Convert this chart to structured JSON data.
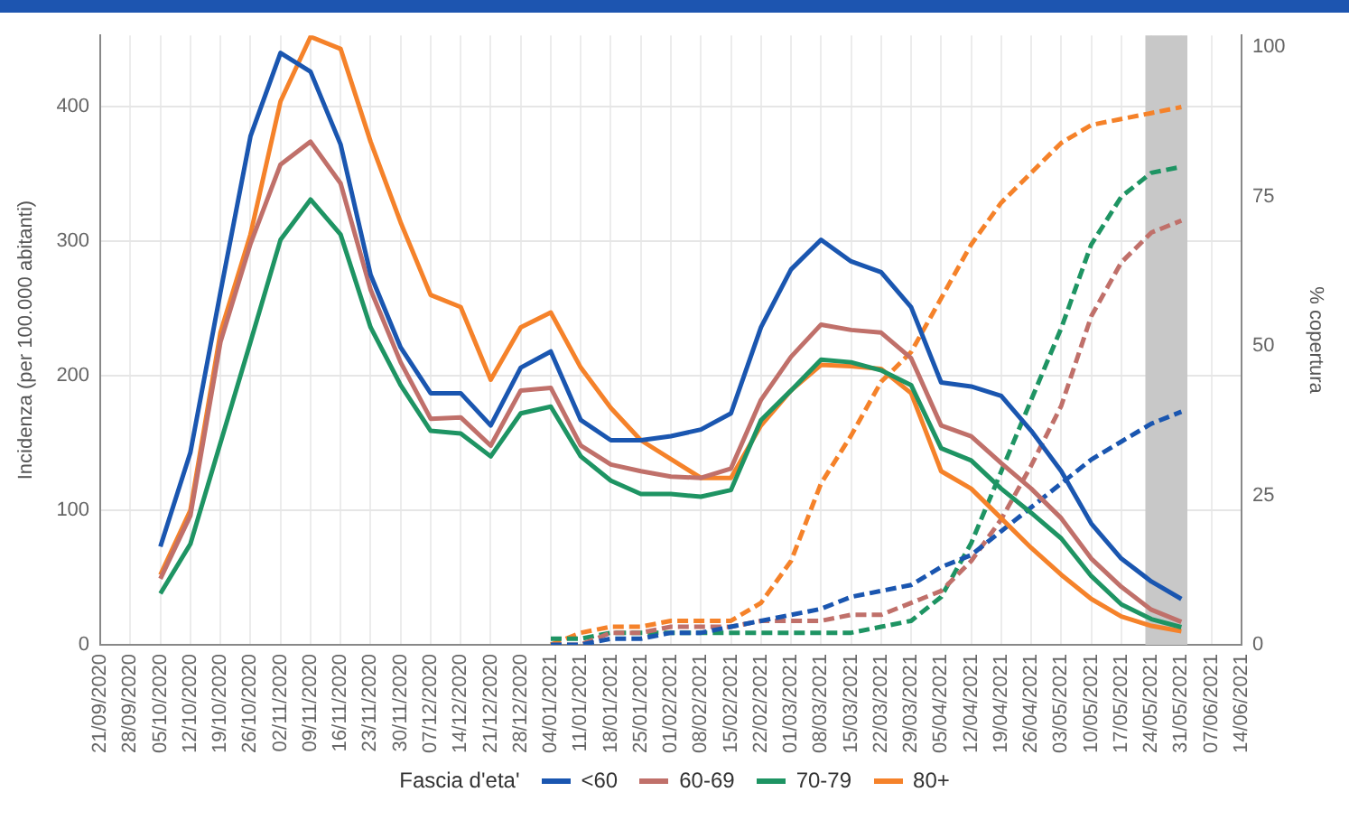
{
  "chart_data": {
    "type": "line",
    "ylabel": "Incidenza (per 100.000 abitanti)",
    "y2label": "% copertura",
    "legend_title": "Fascia d'eta'",
    "legend": "bottom",
    "grid": true,
    "marker": "none",
    "categories": [
      "21/09/2020",
      "28/09/2020",
      "05/10/2020",
      "12/10/2020",
      "19/10/2020",
      "26/10/2020",
      "02/11/2020",
      "09/11/2020",
      "16/11/2020",
      "23/11/2020",
      "30/11/2020",
      "07/12/2020",
      "14/12/2020",
      "21/12/2020",
      "28/12/2020",
      "04/01/2021",
      "11/01/2021",
      "18/01/2021",
      "25/01/2021",
      "01/02/2021",
      "08/02/2021",
      "15/02/2021",
      "22/02/2021",
      "01/03/2021",
      "08/03/2021",
      "15/03/2021",
      "22/03/2021",
      "29/03/2021",
      "05/04/2021",
      "12/04/2021",
      "19/04/2021",
      "26/04/2021",
      "03/05/2021",
      "10/05/2021",
      "17/05/2021",
      "24/05/2021",
      "31/05/2021",
      "07/06/2021",
      "14/06/2021"
    ],
    "ylim": [
      0,
      453
    ],
    "yticks": [
      0,
      100,
      200,
      300,
      400
    ],
    "y2lim": [
      0,
      102
    ],
    "y2ticks": [
      0,
      25,
      50,
      75,
      100
    ],
    "bands": [
      {
        "axis": "x",
        "from": "24/05/2021",
        "to": "31/05/2021",
        "color": "#c8c8c8"
      }
    ],
    "series": [
      {
        "name": "<60",
        "color": "#1a56b0",
        "line_style": "solid",
        "values": [
          null,
          null,
          73,
          143,
          262,
          378,
          440,
          426,
          372,
          275,
          221,
          187,
          187,
          163,
          206,
          218,
          167,
          152,
          152,
          155,
          160,
          172,
          236,
          279,
          301,
          285,
          277,
          251,
          195,
          192,
          185,
          159,
          129,
          90,
          64,
          47,
          34,
          null,
          null
        ]
      },
      {
        "name": "60-69",
        "color": "#c0706a",
        "line_style": "solid",
        "values": [
          null,
          null,
          49,
          96,
          225,
          298,
          357,
          374,
          343,
          264,
          210,
          168,
          169,
          148,
          189,
          191,
          148,
          134,
          129,
          125,
          124,
          131,
          182,
          214,
          238,
          234,
          232,
          213,
          163,
          155,
          135,
          116,
          94,
          64,
          43,
          26,
          17,
          null,
          null
        ]
      },
      {
        "name": "70-79",
        "color": "#1e9463",
        "line_style": "solid",
        "values": [
          null,
          null,
          38,
          75,
          150,
          225,
          301,
          331,
          305,
          236,
          193,
          159,
          157,
          140,
          172,
          177,
          140,
          122,
          112,
          112,
          110,
          115,
          167,
          189,
          212,
          210,
          204,
          193,
          146,
          137,
          116,
          98,
          79,
          51,
          30,
          19,
          13,
          null,
          null
        ]
      },
      {
        "name": "80+",
        "color": "#f5822a",
        "line_style": "solid",
        "values": [
          null,
          null,
          52,
          100,
          232,
          305,
          404,
          452,
          443,
          374,
          314,
          260,
          251,
          197,
          236,
          247,
          206,
          176,
          152,
          138,
          124,
          124,
          163,
          189,
          208,
          207,
          205,
          187,
          129,
          116,
          94,
          72,
          52,
          34,
          21,
          14,
          10,
          null,
          null
        ]
      },
      {
        "color": "#1a56b0",
        "line_style": "dashed",
        "axis": "y2",
        "values": [
          null,
          null,
          null,
          null,
          null,
          null,
          null,
          null,
          null,
          null,
          null,
          null,
          null,
          null,
          null,
          0,
          0,
          1,
          1,
          2,
          2,
          3,
          4,
          5,
          6,
          8,
          9,
          10,
          13,
          15,
          19,
          23,
          27,
          31,
          34,
          37,
          39,
          null,
          null
        ]
      },
      {
        "color": "#c0706a",
        "line_style": "dashed",
        "axis": "y2",
        "values": [
          null,
          null,
          null,
          null,
          null,
          null,
          null,
          null,
          null,
          null,
          null,
          null,
          null,
          null,
          null,
          0,
          0,
          2,
          2,
          3,
          3,
          3,
          4,
          4,
          4,
          5,
          5,
          7,
          9,
          14,
          21,
          30,
          40,
          55,
          64,
          69,
          71,
          null,
          null
        ]
      },
      {
        "color": "#1e9463",
        "line_style": "dashed",
        "axis": "y2",
        "values": [
          null,
          null,
          null,
          null,
          null,
          null,
          null,
          null,
          null,
          null,
          null,
          null,
          null,
          null,
          null,
          1,
          1,
          2,
          2,
          2,
          2,
          2,
          2,
          2,
          2,
          2,
          3,
          4,
          8,
          17,
          29,
          41,
          53,
          67,
          75,
          79,
          80,
          null,
          null
        ]
      },
      {
        "color": "#f5822a",
        "line_style": "dashed",
        "axis": "y2",
        "values": [
          null,
          null,
          null,
          null,
          null,
          null,
          null,
          null,
          null,
          null,
          null,
          null,
          null,
          null,
          null,
          0,
          2,
          3,
          3,
          4,
          4,
          4,
          7,
          14,
          27,
          35,
          44,
          49,
          58,
          67,
          74,
          79,
          84,
          87,
          88,
          89,
          90,
          null,
          null
        ]
      }
    ]
  }
}
